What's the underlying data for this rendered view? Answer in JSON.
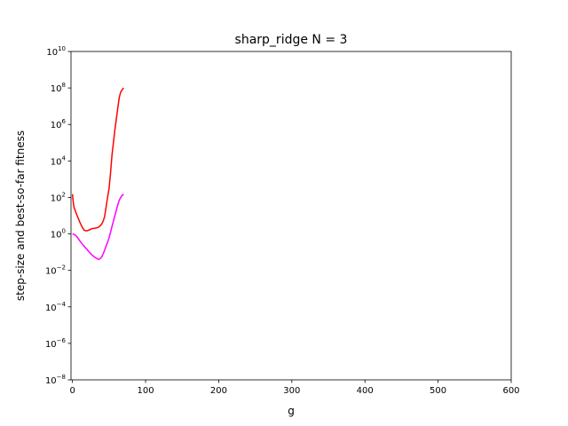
{
  "chart_data": {
    "type": "line",
    "title": "sharp_ridge N = 3",
    "xlabel": "g",
    "ylabel": "step-size and best-so-far fitness",
    "xlim": [
      -2,
      600
    ],
    "ylim_log10": [
      -8,
      10
    ],
    "yscale": "log",
    "grid": false,
    "xticks": [
      0,
      100,
      200,
      300,
      400,
      500,
      600
    ],
    "yticks_exponent": [
      -8,
      -6,
      -4,
      -2,
      0,
      2,
      4,
      6,
      8,
      10
    ],
    "ytick_base": "10",
    "series": [
      {
        "color": "#ff0000",
        "x": [
          0,
          1,
          2,
          4,
          6,
          8,
          10,
          12,
          14,
          16,
          18,
          20,
          22,
          24,
          26,
          28,
          30,
          32,
          34,
          36,
          38,
          40,
          42,
          44,
          46,
          48,
          50,
          52,
          54,
          56,
          58,
          60,
          62,
          64,
          66,
          68,
          70
        ],
        "y": [
          150,
          60,
          30,
          18,
          11,
          7,
          4.5,
          3,
          2.1,
          1.6,
          1.5,
          1.5,
          1.6,
          1.7,
          1.9,
          2.0,
          2.0,
          2.1,
          2.2,
          2.4,
          2.8,
          3.5,
          5,
          9,
          30,
          100,
          300,
          2000,
          20000,
          100000,
          500000,
          2000000,
          8000000,
          30000000,
          60000000,
          80000000,
          100000000
        ]
      },
      {
        "color": "#ff00ff",
        "x": [
          0,
          2,
          4,
          6,
          8,
          10,
          12,
          14,
          16,
          18,
          20,
          22,
          24,
          26,
          28,
          30,
          32,
          34,
          36,
          38,
          40,
          42,
          44,
          46,
          48,
          50,
          52,
          54,
          56,
          58,
          60,
          62,
          64,
          66,
          68,
          70
        ],
        "y": [
          1.0,
          0.95,
          0.85,
          0.7,
          0.55,
          0.42,
          0.33,
          0.26,
          0.21,
          0.17,
          0.14,
          0.11,
          0.09,
          0.075,
          0.063,
          0.055,
          0.048,
          0.043,
          0.04,
          0.045,
          0.055,
          0.08,
          0.13,
          0.22,
          0.35,
          0.6,
          1.2,
          2.5,
          5,
          10,
          20,
          40,
          70,
          100,
          130,
          150
        ]
      }
    ]
  }
}
